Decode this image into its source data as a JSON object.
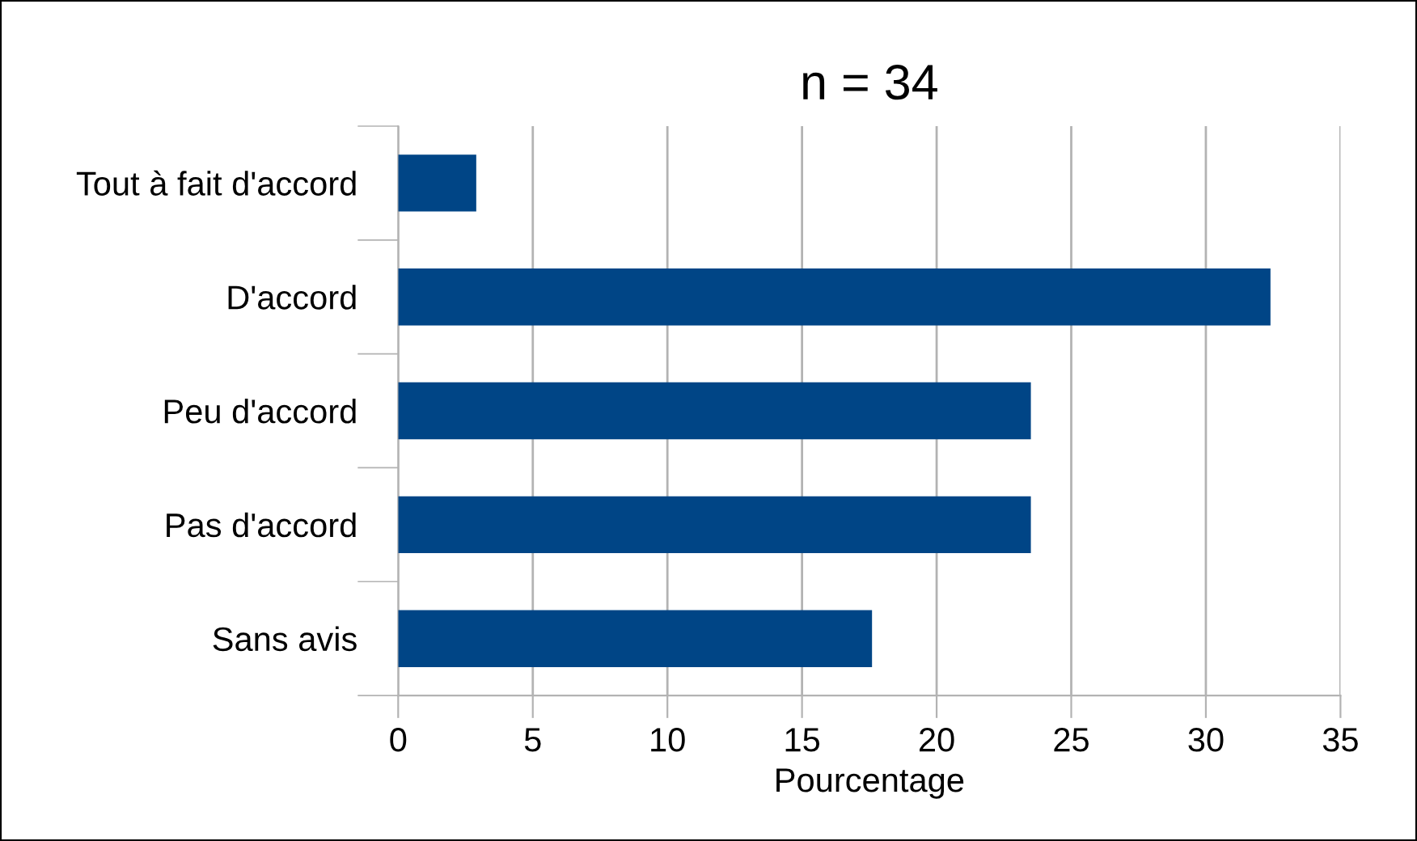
{
  "chart_data": {
    "type": "bar",
    "orientation": "horizontal",
    "title": "n = 34",
    "xlabel": "Pourcentage",
    "categories": [
      "Tout à fait d'accord",
      "D'accord",
      "Peu d'accord",
      "Pas d'accord",
      "Sans avis"
    ],
    "values": [
      2.9,
      32.4,
      23.5,
      23.5,
      17.6
    ],
    "color": "#004586",
    "xlim": [
      0,
      35
    ],
    "xticks": [
      0,
      5,
      10,
      15,
      20,
      25,
      30,
      35
    ],
    "grid": "x"
  }
}
